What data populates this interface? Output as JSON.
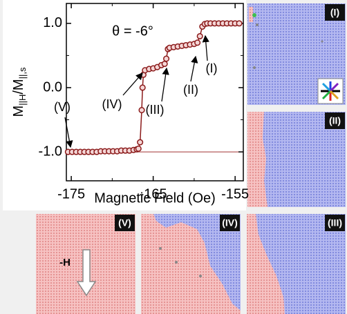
{
  "chart_data": {
    "type": "line",
    "xlabel": "Magnetic Field (Oe)",
    "ylabel": [
      "M",
      "||H",
      "/M",
      "||,s"
    ],
    "annotations": [
      "θ = -6°",
      "(I)",
      "(II)",
      "(III)",
      "(IV)",
      "(V)"
    ],
    "xlim": [
      -175.6,
      -154.0
    ],
    "ylim": [
      -1.45,
      1.31
    ],
    "xticks": [
      -175,
      -165,
      -155
    ],
    "xminorticks": [
      -170,
      -160
    ],
    "yticks": [
      {
        "value": 1,
        "label": "1.0"
      },
      {
        "value": 0,
        "label": "0.0"
      },
      {
        "value": -1,
        "label": "-1.0"
      }
    ],
    "yminorticks": [
      0.5,
      -0.5
    ],
    "reference_line": -1,
    "series": [
      {
        "color": "#8b1a1a",
        "fill": "#f4d6d6",
        "x": [
          -175.4,
          -174.9,
          -174.4,
          -173.9,
          -173.4,
          -172.9,
          -172.4,
          -171.9,
          -171.4,
          -170.9,
          -170.4,
          -169.9,
          -169.4,
          -168.9,
          -168.4,
          -167.9,
          -167.4,
          -167.0,
          -166.8,
          -166.6,
          -166.4,
          -166.3,
          -166.2,
          -166.0,
          -165.5,
          -165.0,
          -164.5,
          -164.0,
          -163.6,
          -163.4,
          -163.2,
          -163.0,
          -162.5,
          -162.0,
          -161.5,
          -161.0,
          -160.5,
          -160.0,
          -159.6,
          -159.3,
          -159.0,
          -158.7,
          -158.4,
          -158.0,
          -157.5,
          -157.0,
          -156.5,
          -156.0,
          -155.5,
          -155.0,
          -154.5
        ],
        "values": [
          -1.0,
          -1.0,
          -1.0,
          -1.0,
          -1.0,
          -1.0,
          -1.0,
          -1.0,
          -0.99,
          -0.99,
          -0.99,
          -0.99,
          -0.99,
          -0.98,
          -0.98,
          -0.98,
          -0.97,
          -0.96,
          -0.95,
          -0.85,
          -0.35,
          0.0,
          0.2,
          0.27,
          0.29,
          0.3,
          0.32,
          0.35,
          0.37,
          0.45,
          0.6,
          0.62,
          0.63,
          0.64,
          0.65,
          0.66,
          0.67,
          0.68,
          0.7,
          0.8,
          0.95,
          0.99,
          1.0,
          1.0,
          1.0,
          1.0,
          1.0,
          1.0,
          1.0,
          1.0,
          1.0
        ]
      }
    ]
  },
  "panels": {
    "labels": [
      "(I)",
      "(II)",
      "(III)",
      "(IV)",
      "(V)"
    ],
    "field_label": "-H"
  }
}
